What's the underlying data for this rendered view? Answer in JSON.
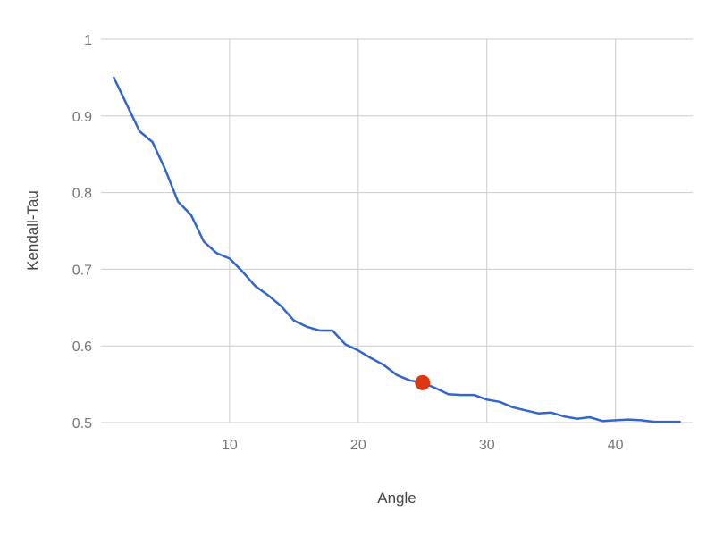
{
  "chart_data": {
    "type": "line",
    "title": "",
    "xlabel": "Angle",
    "ylabel": "Kendall-Tau",
    "xlim": [
      0,
      46
    ],
    "ylim": [
      0.5,
      1.0
    ],
    "grid": true,
    "legend": "none",
    "x_ticks": [
      10,
      20,
      30,
      40
    ],
    "x_tick_labels": [
      "10",
      "20",
      "30",
      "40"
    ],
    "y_ticks": [
      0.5,
      0.6,
      0.7,
      0.8,
      0.9,
      1.0
    ],
    "y_tick_labels": [
      "0.5",
      "0.6",
      "0.7",
      "0.8",
      "0.9",
      "1"
    ],
    "series": [
      {
        "color": "#3366cc",
        "x": [
          1,
          2,
          3,
          4,
          5,
          6,
          7,
          8,
          9,
          10,
          11,
          12,
          13,
          14,
          15,
          16,
          17,
          18,
          19,
          20,
          21,
          22,
          23,
          24,
          25,
          26,
          27,
          28,
          29,
          30,
          31,
          32,
          33,
          34,
          35,
          36,
          37,
          38,
          39,
          40,
          41,
          42,
          43,
          44,
          45
        ],
        "y": [
          0.95,
          0.915,
          0.88,
          0.866,
          0.83,
          0.788,
          0.771,
          0.736,
          0.721,
          0.714,
          0.697,
          0.678,
          0.666,
          0.652,
          0.633,
          0.625,
          0.62,
          0.62,
          0.602,
          0.594,
          0.584,
          0.575,
          0.562,
          0.555,
          0.552,
          0.545,
          0.537,
          0.536,
          0.536,
          0.53,
          0.527,
          0.52,
          0.516,
          0.512,
          0.513,
          0.508,
          0.505,
          0.507,
          0.502,
          0.503,
          0.504,
          0.503,
          0.501,
          0.501,
          0.501
        ]
      }
    ],
    "highlight_point": {
      "x": 25,
      "y": 0.552,
      "color": "#dc3912"
    }
  }
}
